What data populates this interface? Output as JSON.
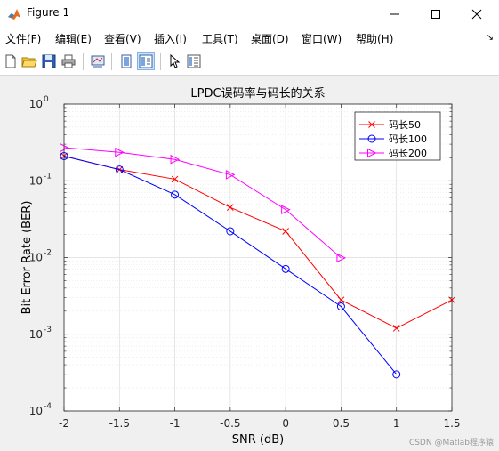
{
  "window": {
    "title": "Figure 1",
    "icon": "matlab-icon",
    "controls": [
      "minimize-icon",
      "maximize-icon",
      "close-icon"
    ]
  },
  "menu": {
    "items": [
      "文件(F)",
      "编辑(E)",
      "查看(V)",
      "插入(I)",
      "工具(T)",
      "桌面(D)",
      "窗口(W)",
      "帮助(H)"
    ],
    "overflow": "↘"
  },
  "toolbar": {
    "icons": [
      "new-figure-icon",
      "open-file-icon",
      "save-icon",
      "print-icon",
      "link-plot-icon",
      "hide-plot-tools-icon",
      "show-plot-tools-icon",
      "edit-plot-icon",
      "insert-legend-icon"
    ]
  },
  "chart_data": {
    "type": "line",
    "title": "LPDC误码率与码长的关系",
    "xlabel": "SNR (dB)",
    "ylabel": "Bit Error Rate (BER)",
    "xlim": [
      -2,
      1.5
    ],
    "ylim": [
      0.0001,
      1
    ],
    "yscale": "log",
    "grid": true,
    "legend_position": "top-right",
    "x_ticks": [
      "-2",
      "-1.5",
      "-1",
      "-0.5",
      "0",
      "0.5",
      "1",
      "1.5"
    ],
    "y_tick_base": "10",
    "y_tick_exponents": [
      "-4",
      "-3",
      "-2",
      "-1",
      "0"
    ],
    "series": [
      {
        "name": "码长50",
        "color": "#ff0000",
        "marker": "x",
        "x": [
          -2,
          -1.5,
          -1,
          -0.5,
          0,
          0.5,
          1,
          1.5
        ],
        "y": [
          0.21,
          0.14,
          0.105,
          0.045,
          0.022,
          0.0028,
          0.0012,
          0.0028
        ]
      },
      {
        "name": "码长100",
        "color": "#0000ff",
        "marker": "o",
        "x": [
          -2,
          -1.5,
          -1,
          -0.5,
          0,
          0.5,
          1
        ],
        "y": [
          0.21,
          0.14,
          0.066,
          0.022,
          0.0071,
          0.0023,
          0.0003
        ]
      },
      {
        "name": "码长200",
        "color": "#ff00ff",
        "marker": "triangle-right",
        "x": [
          -2,
          -1.5,
          -1,
          -0.5,
          0,
          0.5
        ],
        "y": [
          0.27,
          0.235,
          0.19,
          0.12,
          0.042,
          0.0099
        ]
      }
    ]
  },
  "watermark": "CSDN @Matlab程序猿"
}
